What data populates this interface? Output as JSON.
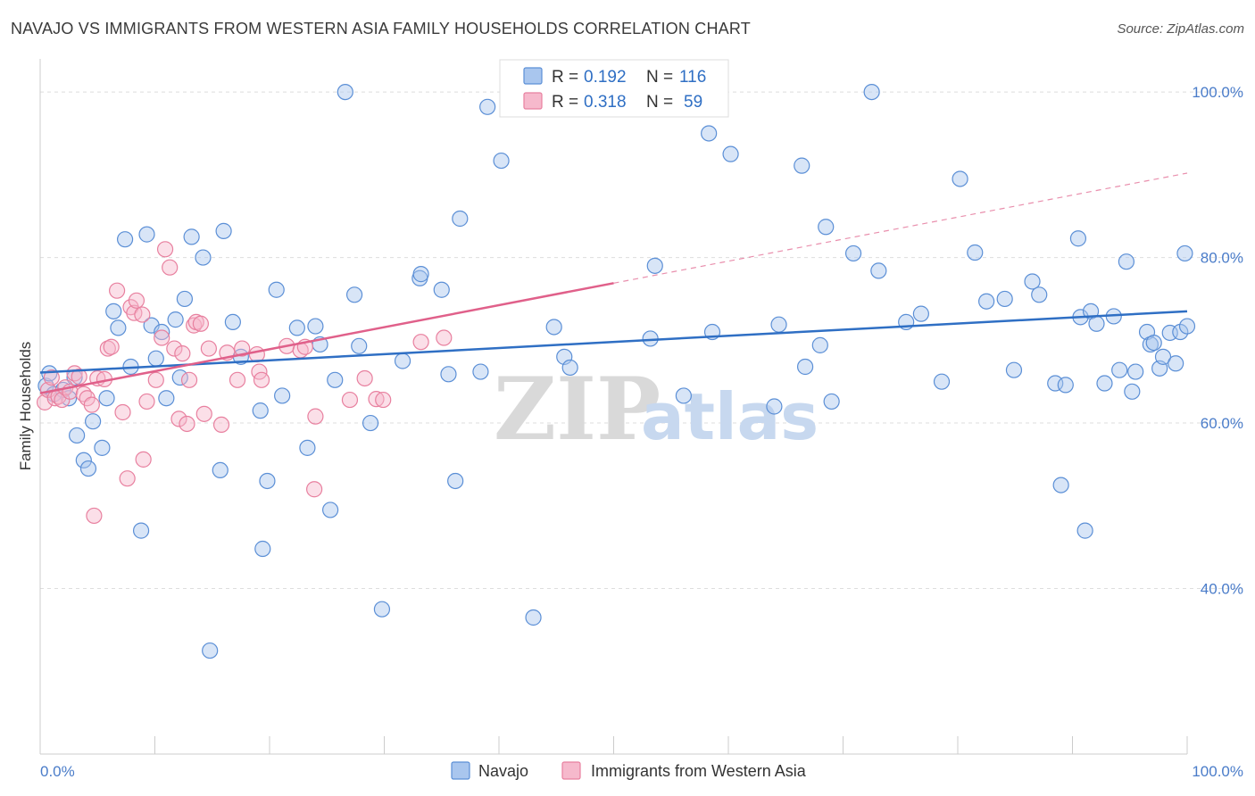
{
  "title": "NAVAJO VS IMMIGRANTS FROM WESTERN ASIA FAMILY HOUSEHOLDS CORRELATION CHART",
  "source": "Source: ZipAtlas.com",
  "watermark": {
    "zip": "ZIP",
    "atlas": "atlas"
  },
  "legend": {
    "rows": [
      {
        "r_label": "R =",
        "r_value": "0.192",
        "n_label": "N =",
        "n_value": "116"
      },
      {
        "r_label": "R =",
        "r_value": "0.318",
        "n_label": "N =",
        "n_value": "59"
      }
    ]
  },
  "bottom_legend": [
    "Navajo",
    "Immigrants from Western Asia"
  ],
  "colors": {
    "navajo_fill": "#a9c6ee",
    "navajo_stroke": "#5b8fd6",
    "navajo_line": "#2f6fc4",
    "imm_fill": "#f6b9cc",
    "imm_stroke": "#e8809f",
    "imm_line": "#e0608a",
    "grid": "#dddddd",
    "tick_text": "#4a7cc9"
  },
  "chart_data": {
    "type": "scatter",
    "title": "NAVAJO VS IMMIGRANTS FROM WESTERN ASIA FAMILY HOUSEHOLDS CORRELATION CHART",
    "xlabel": "",
    "ylabel": "Family Households",
    "xlim": [
      0,
      100
    ],
    "ylim": [
      20,
      104
    ],
    "x_tick_labels": [
      "0.0%",
      "100.0%"
    ],
    "y_ticks": [
      40,
      60,
      80,
      100
    ],
    "y_tick_labels": [
      "40.0%",
      "60.0%",
      "80.0%",
      "100.0%"
    ],
    "grid": "horizontal dashed",
    "legend_placement": "top-center",
    "series": [
      {
        "name": "Navajo",
        "R": 0.192,
        "N": 116,
        "trend": {
          "x0": 0,
          "y0": 66.1,
          "x1": 100,
          "y1": 73.5
        },
        "points": [
          [
            0.5,
            64.5
          ],
          [
            0.8,
            66.0
          ],
          [
            1.2,
            63.5
          ],
          [
            2.0,
            64.0
          ],
          [
            2.5,
            63.0
          ],
          [
            3.0,
            65.5
          ],
          [
            3.2,
            58.5
          ],
          [
            3.8,
            55.5
          ],
          [
            4.2,
            54.5
          ],
          [
            4.6,
            60.2
          ],
          [
            5.4,
            57.0
          ],
          [
            5.8,
            63.0
          ],
          [
            6.4,
            73.5
          ],
          [
            6.8,
            71.5
          ],
          [
            7.4,
            82.2
          ],
          [
            7.9,
            66.8
          ],
          [
            8.8,
            47.0
          ],
          [
            9.3,
            82.8
          ],
          [
            9.7,
            71.8
          ],
          [
            10.1,
            67.8
          ],
          [
            10.6,
            71.0
          ],
          [
            11.0,
            63.0
          ],
          [
            11.8,
            72.5
          ],
          [
            12.2,
            65.5
          ],
          [
            12.6,
            75.0
          ],
          [
            13.2,
            82.5
          ],
          [
            14.2,
            80.0
          ],
          [
            14.8,
            32.5
          ],
          [
            15.7,
            54.3
          ],
          [
            16.0,
            83.2
          ],
          [
            16.8,
            72.2
          ],
          [
            17.5,
            68.0
          ],
          [
            19.2,
            61.5
          ],
          [
            19.4,
            44.8
          ],
          [
            19.8,
            53.0
          ],
          [
            20.6,
            76.1
          ],
          [
            21.1,
            63.3
          ],
          [
            22.4,
            71.5
          ],
          [
            23.3,
            57.0
          ],
          [
            24.0,
            71.7
          ],
          [
            24.4,
            69.5
          ],
          [
            25.3,
            49.5
          ],
          [
            25.7,
            65.2
          ],
          [
            26.6,
            100.0
          ],
          [
            27.4,
            75.5
          ],
          [
            27.8,
            69.3
          ],
          [
            28.8,
            60.0
          ],
          [
            29.8,
            37.5
          ],
          [
            31.6,
            67.5
          ],
          [
            33.1,
            77.5
          ],
          [
            33.2,
            78.0
          ],
          [
            35.0,
            76.1
          ],
          [
            35.6,
            65.9
          ],
          [
            36.2,
            53.0
          ],
          [
            36.6,
            84.7
          ],
          [
            38.4,
            66.2
          ],
          [
            39.0,
            98.2
          ],
          [
            40.2,
            91.7
          ],
          [
            40.9,
            100.0
          ],
          [
            43.0,
            36.5
          ],
          [
            44.8,
            71.6
          ],
          [
            45.7,
            68.0
          ],
          [
            46.2,
            66.7
          ],
          [
            53.2,
            70.2
          ],
          [
            53.6,
            79.0
          ],
          [
            56.1,
            63.3
          ],
          [
            57.5,
            100.0
          ],
          [
            58.3,
            95.0
          ],
          [
            58.6,
            71.0
          ],
          [
            60.2,
            92.5
          ],
          [
            64.0,
            62.0
          ],
          [
            64.4,
            71.9
          ],
          [
            66.4,
            91.1
          ],
          [
            66.7,
            66.8
          ],
          [
            68.0,
            69.4
          ],
          [
            68.5,
            83.7
          ],
          [
            69.0,
            62.6
          ],
          [
            70.9,
            80.5
          ],
          [
            72.5,
            100.0
          ],
          [
            73.1,
            78.4
          ],
          [
            75.5,
            72.2
          ],
          [
            76.8,
            73.2
          ],
          [
            78.6,
            65.0
          ],
          [
            80.2,
            89.5
          ],
          [
            81.5,
            80.6
          ],
          [
            82.5,
            74.7
          ],
          [
            84.1,
            75.0
          ],
          [
            84.9,
            66.4
          ],
          [
            86.5,
            77.1
          ],
          [
            87.1,
            75.5
          ],
          [
            88.5,
            64.8
          ],
          [
            89.0,
            52.5
          ],
          [
            89.4,
            64.6
          ],
          [
            90.5,
            82.3
          ],
          [
            90.7,
            72.8
          ],
          [
            91.1,
            47.0
          ],
          [
            91.6,
            73.5
          ],
          [
            92.1,
            72.0
          ],
          [
            92.8,
            64.8
          ],
          [
            93.6,
            72.9
          ],
          [
            94.1,
            66.4
          ],
          [
            94.7,
            79.5
          ],
          [
            95.2,
            63.8
          ],
          [
            95.5,
            66.2
          ],
          [
            96.5,
            71.0
          ],
          [
            96.8,
            69.5
          ],
          [
            97.1,
            69.7
          ],
          [
            97.6,
            66.6
          ],
          [
            97.9,
            68.0
          ],
          [
            98.5,
            70.9
          ],
          [
            99.0,
            67.2
          ],
          [
            99.4,
            71.0
          ],
          [
            99.8,
            80.5
          ],
          [
            100.0,
            71.7
          ]
        ]
      },
      {
        "name": "Immigrants from Western Asia",
        "R": 0.318,
        "N": 59,
        "trend": {
          "x0": 0,
          "y0": 63.6,
          "x1": 50,
          "y1": 76.9
        },
        "trend_dashed": {
          "x0": 50,
          "y0": 76.9,
          "x1": 100,
          "y1": 90.2
        },
        "points": [
          [
            0.4,
            62.5
          ],
          [
            0.7,
            64.0
          ],
          [
            1.0,
            65.5
          ],
          [
            1.3,
            63.0
          ],
          [
            1.6,
            63.2
          ],
          [
            1.9,
            62.8
          ],
          [
            2.2,
            64.3
          ],
          [
            2.6,
            63.8
          ],
          [
            3.0,
            66.0
          ],
          [
            3.4,
            65.6
          ],
          [
            3.8,
            63.5
          ],
          [
            4.1,
            63.0
          ],
          [
            4.5,
            62.2
          ],
          [
            4.7,
            48.8
          ],
          [
            5.0,
            65.4
          ],
          [
            5.6,
            65.3
          ],
          [
            5.9,
            69.0
          ],
          [
            6.2,
            69.2
          ],
          [
            6.7,
            76.0
          ],
          [
            7.2,
            61.3
          ],
          [
            7.6,
            53.3
          ],
          [
            7.9,
            74.0
          ],
          [
            8.2,
            73.3
          ],
          [
            8.4,
            74.8
          ],
          [
            8.9,
            73.1
          ],
          [
            9.0,
            55.6
          ],
          [
            9.3,
            62.6
          ],
          [
            10.1,
            65.2
          ],
          [
            10.6,
            70.3
          ],
          [
            10.9,
            81.0
          ],
          [
            11.3,
            78.8
          ],
          [
            11.7,
            69.0
          ],
          [
            12.1,
            60.5
          ],
          [
            12.4,
            68.4
          ],
          [
            12.8,
            59.9
          ],
          [
            13.0,
            65.2
          ],
          [
            13.4,
            71.8
          ],
          [
            13.6,
            72.2
          ],
          [
            14.0,
            72.0
          ],
          [
            14.3,
            61.1
          ],
          [
            14.7,
            69.0
          ],
          [
            15.8,
            59.8
          ],
          [
            16.3,
            68.5
          ],
          [
            17.2,
            65.2
          ],
          [
            17.6,
            69.0
          ],
          [
            18.9,
            68.3
          ],
          [
            19.1,
            66.2
          ],
          [
            19.3,
            65.2
          ],
          [
            21.5,
            69.3
          ],
          [
            22.7,
            68.8
          ],
          [
            23.1,
            69.2
          ],
          [
            23.9,
            52.0
          ],
          [
            24.0,
            60.8
          ],
          [
            27.0,
            62.8
          ],
          [
            28.3,
            65.4
          ],
          [
            29.3,
            62.9
          ],
          [
            29.9,
            62.8
          ],
          [
            33.2,
            69.8
          ],
          [
            35.2,
            70.3
          ]
        ]
      }
    ]
  }
}
